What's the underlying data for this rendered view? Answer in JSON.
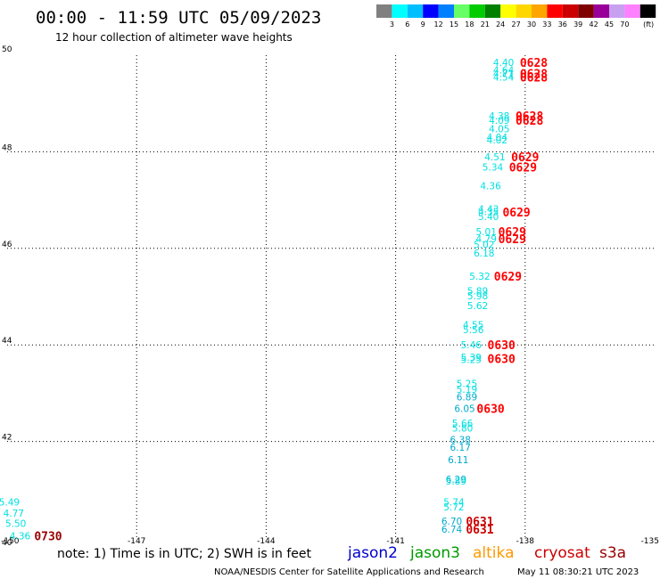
{
  "header": {
    "title": "00:00 - 11:59 UTC 05/09/2023",
    "subtitle": "12 hour collection of altimeter wave heights"
  },
  "legend": {
    "unit": "(ft)",
    "bins": [
      {
        "color": "#808080",
        "label": ""
      },
      {
        "color": "#00ffff",
        "label": "3"
      },
      {
        "color": "#00bfff",
        "label": "6"
      },
      {
        "color": "#0000ff",
        "label": "9"
      },
      {
        "color": "#0080ff",
        "label": "12"
      },
      {
        "color": "#66ff66",
        "label": "15"
      },
      {
        "color": "#00cc00",
        "label": "18"
      },
      {
        "color": "#008000",
        "label": "21"
      },
      {
        "color": "#ffff00",
        "label": "24"
      },
      {
        "color": "#ffd700",
        "label": "27"
      },
      {
        "color": "#ffa500",
        "label": "30"
      },
      {
        "color": "#ff0000",
        "label": "33"
      },
      {
        "color": "#cc0000",
        "label": "36"
      },
      {
        "color": "#800000",
        "label": "39"
      },
      {
        "color": "#990099",
        "label": "42"
      },
      {
        "color": "#c8a0f0",
        "label": "45"
      },
      {
        "color": "#ff80ff",
        "label": "70"
      },
      {
        "color": "#000000",
        "label": ""
      }
    ]
  },
  "footer": {
    "note": "note: 1) Time is in UTC; 2) SWH is in feet",
    "satellites": [
      {
        "name": "jason2",
        "color": "#0000cc"
      },
      {
        "name": "jason3",
        "color": "#009900"
      },
      {
        "name": "altika",
        "color": "#ff9900"
      },
      {
        "name": "cryosat",
        "color": "#cc0000"
      },
      {
        "name": "s3a",
        "color": "#990000"
      }
    ],
    "credit": "NOAA/NESDIS Center for Satellite Applications and Research",
    "timestamp": "May 11 08:30:21 UTC 2023"
  },
  "chart_data": {
    "type": "scatter",
    "title": "00:00 - 11:59 UTC 05/09/2023",
    "subtitle": "12 hour collection of altimeter wave heights",
    "xlim": [
      -150,
      -135
    ],
    "ylim": [
      40,
      50
    ],
    "x_ticks": [
      -150,
      -147,
      -144,
      -141,
      -138,
      -135
    ],
    "x_tick_labels": [
      "-150",
      "-147",
      "-144",
      "-141",
      "-138",
      "-135"
    ],
    "y_ticks": [
      40,
      42,
      44,
      46,
      48,
      50
    ],
    "y_tick_labels": [
      "40",
      "42",
      "44",
      "46",
      "48",
      "50"
    ],
    "grid": true,
    "swh_points": [
      {
        "lon": -138.5,
        "lat": 49.85,
        "swh": "4.40",
        "color": "#00e0e0"
      },
      {
        "lon": -138.5,
        "lat": 49.7,
        "swh": "4.64",
        "color": "#00e0e0"
      },
      {
        "lon": -138.5,
        "lat": 49.62,
        "swh": "4.71",
        "color": "#00e0e0"
      },
      {
        "lon": -138.5,
        "lat": 49.55,
        "swh": "4.54",
        "color": "#00e0e0"
      },
      {
        "lon": -138.6,
        "lat": 48.75,
        "swh": "4.38",
        "color": "#00e0e0"
      },
      {
        "lon": -138.6,
        "lat": 48.65,
        "swh": "4.09",
        "color": "#00e0e0"
      },
      {
        "lon": -138.6,
        "lat": 48.48,
        "swh": "4.05",
        "color": "#00e0e0"
      },
      {
        "lon": -138.65,
        "lat": 48.3,
        "swh": "4.04",
        "color": "#00e0e0"
      },
      {
        "lon": -138.65,
        "lat": 48.25,
        "swh": "4.02",
        "color": "#00e0e0"
      },
      {
        "lon": -138.7,
        "lat": 47.9,
        "swh": "4.51",
        "color": "#00e0e0"
      },
      {
        "lon": -138.75,
        "lat": 47.68,
        "swh": "5.34",
        "color": "#00e0e0"
      },
      {
        "lon": -138.8,
        "lat": 47.3,
        "swh": "4.36",
        "color": "#00e0e0"
      },
      {
        "lon": -138.85,
        "lat": 46.82,
        "swh": "4.43",
        "color": "#00e0e0"
      },
      {
        "lon": -138.85,
        "lat": 46.76,
        "swh": "4.35",
        "color": "#00e0e0"
      },
      {
        "lon": -138.85,
        "lat": 46.66,
        "swh": "5.40",
        "color": "#00e0e0"
      },
      {
        "lon": -138.9,
        "lat": 46.35,
        "swh": "5.01",
        "color": "#00e0e0"
      },
      {
        "lon": -138.9,
        "lat": 46.2,
        "swh": "4.79",
        "color": "#00e0e0"
      },
      {
        "lon": -138.95,
        "lat": 46.08,
        "swh": "5.02",
        "color": "#00e0e0"
      },
      {
        "lon": -138.95,
        "lat": 45.9,
        "swh": "6.18",
        "color": "#00e0e0"
      },
      {
        "lon": -139.05,
        "lat": 45.42,
        "swh": "5.32",
        "color": "#00e0e0"
      },
      {
        "lon": -139.1,
        "lat": 45.12,
        "swh": "5.89",
        "color": "#00e0e0"
      },
      {
        "lon": -139.1,
        "lat": 45.02,
        "swh": "5.98",
        "color": "#00e0e0"
      },
      {
        "lon": -139.1,
        "lat": 44.82,
        "swh": "5.62",
        "color": "#00e0e0"
      },
      {
        "lon": -139.2,
        "lat": 44.42,
        "swh": "4.55",
        "color": "#00e0e0"
      },
      {
        "lon": -139.2,
        "lat": 44.32,
        "swh": "5.56",
        "color": "#00e0e0"
      },
      {
        "lon": -139.25,
        "lat": 44.0,
        "swh": "5.46",
        "color": "#00e0e0"
      },
      {
        "lon": -139.25,
        "lat": 43.75,
        "swh": "5.39",
        "color": "#00e0e0"
      },
      {
        "lon": -139.25,
        "lat": 43.7,
        "swh": "5.25",
        "color": "#00e0e0"
      },
      {
        "lon": -139.35,
        "lat": 43.2,
        "swh": "5.25",
        "color": "#00e0e0"
      },
      {
        "lon": -139.35,
        "lat": 43.08,
        "swh": "5.19",
        "color": "#00e0e0"
      },
      {
        "lon": -139.35,
        "lat": 42.92,
        "swh": "6.89",
        "color": "#00aacc"
      },
      {
        "lon": -139.4,
        "lat": 42.68,
        "swh": "6.05",
        "color": "#00aacc"
      },
      {
        "lon": -139.45,
        "lat": 42.38,
        "swh": "5.66",
        "color": "#00e0e0"
      },
      {
        "lon": -139.45,
        "lat": 42.28,
        "swh": "5.80",
        "color": "#00e0e0"
      },
      {
        "lon": -139.5,
        "lat": 42.04,
        "swh": "6.38",
        "color": "#00aacc"
      },
      {
        "lon": -139.5,
        "lat": 41.88,
        "swh": "6.17",
        "color": "#00aacc"
      },
      {
        "lon": -139.55,
        "lat": 41.62,
        "swh": "6.11",
        "color": "#00aacc"
      },
      {
        "lon": -139.6,
        "lat": 41.22,
        "swh": "6.29",
        "color": "#00aacc"
      },
      {
        "lon": -139.6,
        "lat": 41.18,
        "swh": "5.89",
        "color": "#00e0e0"
      },
      {
        "lon": -139.65,
        "lat": 40.75,
        "swh": "5.74",
        "color": "#00e0e0"
      },
      {
        "lon": -139.65,
        "lat": 40.65,
        "swh": "5.72",
        "color": "#00e0e0"
      },
      {
        "lon": -139.7,
        "lat": 40.35,
        "swh": "6.70",
        "color": "#00aacc"
      },
      {
        "lon": -139.7,
        "lat": 40.18,
        "swh": "6.74",
        "color": "#00aacc"
      },
      {
        "lon": -149.95,
        "lat": 40.75,
        "swh": "5.49",
        "color": "#00e0e0"
      },
      {
        "lon": -149.85,
        "lat": 40.52,
        "swh": "4.77",
        "color": "#00e0e0"
      },
      {
        "lon": -149.8,
        "lat": 40.3,
        "swh": "5.50",
        "color": "#00e0e0"
      },
      {
        "lon": -149.7,
        "lat": 40.05,
        "swh": "4.36",
        "color": "#00e0e0"
      }
    ],
    "time_labels": [
      {
        "lon": -137.8,
        "lat": 49.85,
        "time": "0628",
        "color": "#ff0000"
      },
      {
        "lon": -137.8,
        "lat": 49.62,
        "time": "0628",
        "color": "#ff0000"
      },
      {
        "lon": -137.8,
        "lat": 49.55,
        "time": "0628",
        "color": "#ff0000"
      },
      {
        "lon": -137.9,
        "lat": 48.75,
        "time": "0628",
        "color": "#ff0000"
      },
      {
        "lon": -137.9,
        "lat": 48.65,
        "time": "0628",
        "color": "#ff0000"
      },
      {
        "lon": -138.0,
        "lat": 47.9,
        "time": "0629",
        "color": "#ff0000"
      },
      {
        "lon": -138.05,
        "lat": 47.68,
        "time": "0629",
        "color": "#ff0000"
      },
      {
        "lon": -138.2,
        "lat": 46.75,
        "time": "0629",
        "color": "#ff0000"
      },
      {
        "lon": -138.3,
        "lat": 46.35,
        "time": "0629",
        "color": "#ff0000"
      },
      {
        "lon": -138.3,
        "lat": 46.2,
        "time": "0629",
        "color": "#ff0000"
      },
      {
        "lon": -138.4,
        "lat": 45.42,
        "time": "0629",
        "color": "#ff0000"
      },
      {
        "lon": -138.55,
        "lat": 44.0,
        "time": "0630",
        "color": "#ff0000"
      },
      {
        "lon": -138.55,
        "lat": 43.72,
        "time": "0630",
        "color": "#ff0000"
      },
      {
        "lon": -138.8,
        "lat": 42.68,
        "time": "0630",
        "color": "#ff0000"
      },
      {
        "lon": -139.05,
        "lat": 40.35,
        "time": "0631",
        "color": "#cc0000"
      },
      {
        "lon": -139.05,
        "lat": 40.18,
        "time": "0631",
        "color": "#cc0000"
      },
      {
        "lon": -149.05,
        "lat": 40.05,
        "time": "0730",
        "color": "#990000"
      }
    ]
  }
}
